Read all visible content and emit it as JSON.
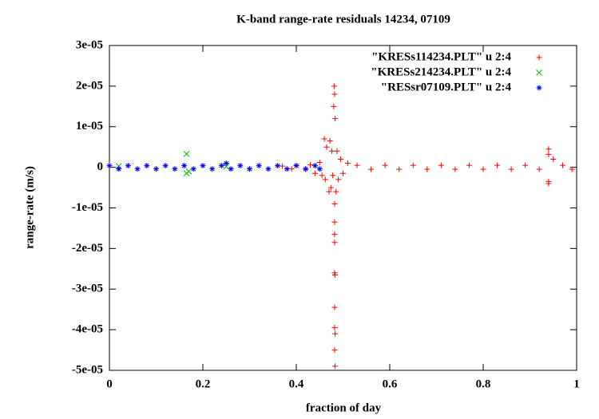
{
  "chart_data": {
    "type": "scatter",
    "title": "K-band range-rate residuals 14234, 07109",
    "x_label": "fraction of day",
    "y_label": "range-rate (m/s)",
    "xlim": [
      0,
      1
    ],
    "xticks": [
      0,
      0.2,
      0.4,
      0.6,
      0.8,
      1
    ],
    "ylim": [
      -5e-05,
      3e-05
    ],
    "yticks": [
      {
        "value": -5e-05,
        "label": "-5e-05"
      },
      {
        "value": -4e-05,
        "label": "-4e-05"
      },
      {
        "value": -3e-05,
        "label": "-3e-05"
      },
      {
        "value": -2e-05,
        "label": "-2e-05"
      },
      {
        "value": -1e-05,
        "label": "-1e-05"
      },
      0,
      {
        "value": 1e-05,
        "label": "1e-05"
      },
      {
        "value": 2e-05,
        "label": "2e-05"
      },
      {
        "value": 3e-05,
        "label": "3e-05"
      }
    ],
    "legend": "top-right",
    "series": [
      {
        "name": "\"KRESs114234.PLT\" u 2:4",
        "color": "#ff0000",
        "marker": "plus",
        "x": [
          0.37,
          0.39,
          0.4,
          0.42,
          0.43,
          0.44,
          0.45,
          0.455,
          0.46,
          0.462,
          0.465,
          0.47,
          0.472,
          0.474,
          0.476,
          0.478,
          0.48,
          0.481,
          0.482,
          0.483,
          0.482,
          0.482,
          0.482,
          0.482,
          0.482,
          0.483,
          0.482,
          0.482,
          0.483,
          0.482,
          0.483,
          0.485,
          0.487,
          0.49,
          0.495,
          0.5,
          0.51,
          0.53,
          0.56,
          0.59,
          0.62,
          0.65,
          0.68,
          0.71,
          0.74,
          0.77,
          0.8,
          0.83,
          0.86,
          0.89,
          0.92,
          0.94,
          0.94,
          0.94,
          0.94,
          0.95,
          0.97,
          0.99
        ],
        "values": [
          3e-07,
          -4e-07,
          5e-07,
          -5e-07,
          6e-07,
          -1.5e-06,
          1.2e-06,
          -2e-06,
          7e-06,
          -3e-06,
          5e-06,
          -6e-06,
          6.5e-06,
          -5e-06,
          4e-06,
          -2e-06,
          1.5e-05,
          2e-05,
          1.8e-05,
          1.2e-05,
          -9e-06,
          -1.35e-05,
          -1.65e-05,
          -1.85e-05,
          -2.6e-05,
          -2.65e-05,
          -3.45e-05,
          -3.95e-05,
          -4.1e-05,
          -4.5e-05,
          -4.9e-05,
          -6e-06,
          4e-06,
          -3e-06,
          2e-06,
          -1.5e-06,
          1e-06,
          5e-07,
          -5e-07,
          5e-07,
          -5e-07,
          5e-07,
          -5e-07,
          5e-07,
          -5e-07,
          5e-07,
          -5e-07,
          5e-07,
          -5e-07,
          5e-07,
          -5e-07,
          4.5e-06,
          3.2e-06,
          -3.5e-06,
          -4e-06,
          2e-06,
          5e-07,
          -5e-07
        ]
      },
      {
        "name": "\"KRESs214234.PLT\" u 2:4",
        "color": "#00c000",
        "marker": "cross",
        "x": [
          0.02,
          0.165,
          0.165,
          0.17,
          0.25
        ],
        "values": [
          3e-07,
          3.3e-06,
          -1.5e-06,
          -1e-06,
          2e-07
        ]
      },
      {
        "name": "\"RESsr07109.PLT\" u 2:4",
        "color": "#0000ff",
        "marker": "star",
        "x": [
          0,
          0.02,
          0.04,
          0.06,
          0.08,
          0.1,
          0.12,
          0.14,
          0.16,
          0.18,
          0.2,
          0.22,
          0.24,
          0.25,
          0.26,
          0.28,
          0.3,
          0.32,
          0.34,
          0.36,
          0.38,
          0.4,
          0.42,
          0.44,
          0.45
        ],
        "values": [
          4e-07,
          -4e-07,
          4e-07,
          -4e-07,
          4e-07,
          -4e-07,
          4e-07,
          -4e-07,
          4e-07,
          -4e-07,
          4e-07,
          -4e-07,
          4e-07,
          1e-06,
          -4e-07,
          4e-07,
          -4e-07,
          4e-07,
          -4e-07,
          4e-07,
          -4e-07,
          4e-07,
          -4e-07,
          4e-07,
          -4e-07
        ]
      }
    ]
  }
}
